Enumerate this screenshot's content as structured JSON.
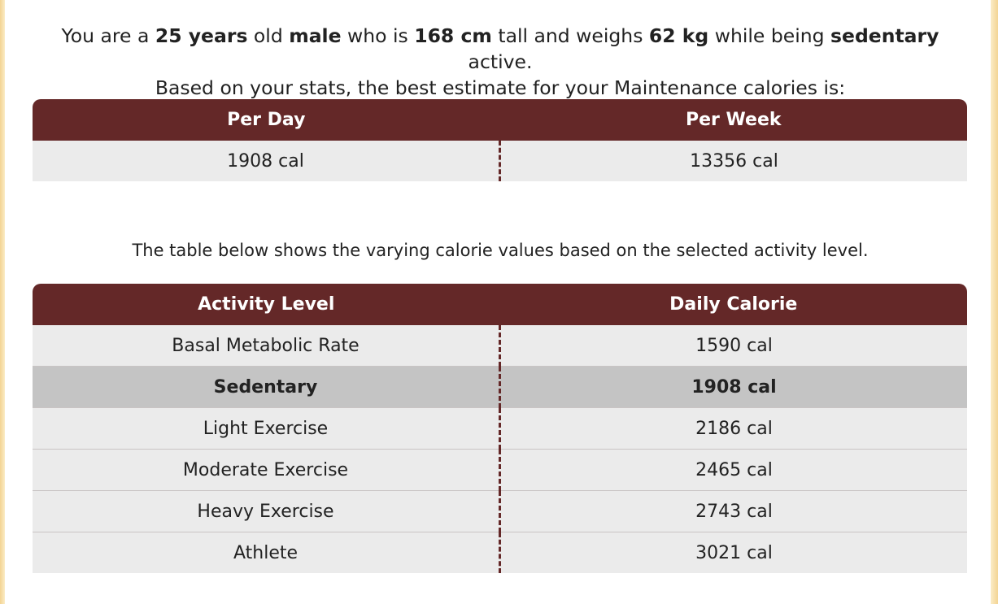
{
  "summary": {
    "line1_parts": [
      "You are a ",
      "25 years",
      " old ",
      "male",
      " who is ",
      "168 cm",
      " tall and weighs ",
      "62 kg",
      " while being ",
      "sedentary",
      " active."
    ],
    "line2": "Based on your stats, the best estimate for your Maintenance calories is:"
  },
  "maintenance_table": {
    "headers": [
      "Per Day",
      "Per Week"
    ],
    "values": [
      "1908 cal",
      "13356 cal"
    ]
  },
  "note": "The table below shows the varying calorie values based on the selected activity level.",
  "activity_table": {
    "headers": [
      "Activity Level",
      "Daily Calorie"
    ],
    "rows": [
      {
        "level": "Basal Metabolic Rate",
        "calories": "1590 cal"
      },
      {
        "level": "Sedentary",
        "calories": "1908 cal"
      },
      {
        "level": "Light Exercise",
        "calories": "2186 cal"
      },
      {
        "level": "Moderate Exercise",
        "calories": "2465 cal"
      },
      {
        "level": "Heavy Exercise",
        "calories": "2743 cal"
      },
      {
        "level": "Athlete",
        "calories": "3021 cal"
      }
    ],
    "selected_level": "Sedentary"
  },
  "colors": {
    "header_bg": "#642828",
    "row_bg": "#ebebeb",
    "selected_row_bg": "#c4c4c4",
    "frame_bg": "#f6dfa6"
  }
}
